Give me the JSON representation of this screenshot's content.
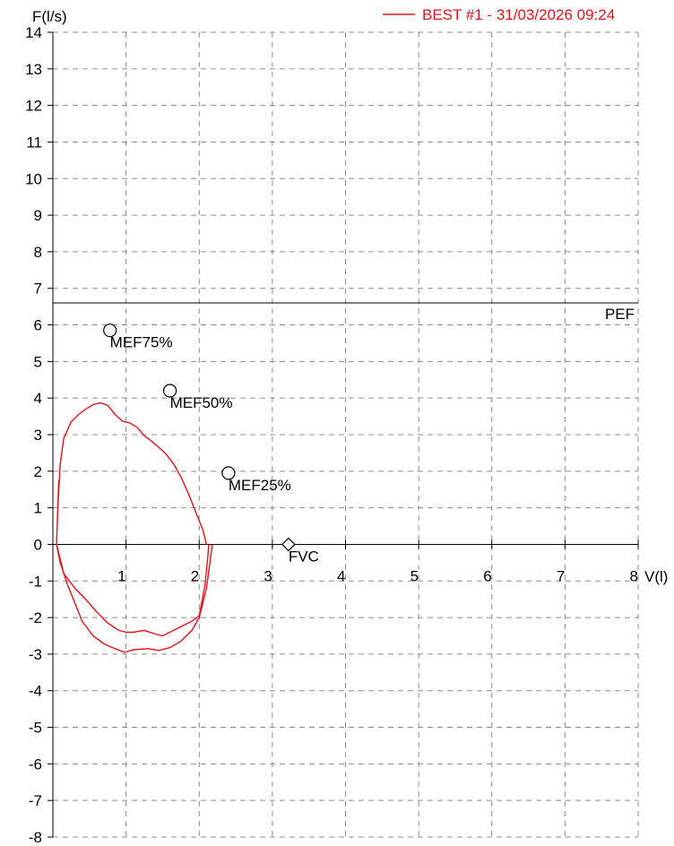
{
  "chart_data": {
    "type": "line",
    "title": "",
    "xlabel": "V(l)",
    "ylabel": "F(l/s)",
    "xlim": [
      0,
      8
    ],
    "ylim": [
      -8,
      14
    ],
    "x_ticks": [
      "1",
      "2",
      "3",
      "4",
      "5",
      "6",
      "7",
      "8"
    ],
    "y_ticks": [
      "14",
      "13",
      "12",
      "11",
      "10",
      "9",
      "8",
      "7",
      "6",
      "5",
      "4",
      "3",
      "2",
      "1",
      "0",
      "-1",
      "-2",
      "-3",
      "-4",
      "-5",
      "-6",
      "-7",
      "-8"
    ],
    "grid": true,
    "legend": {
      "position": "top-right",
      "entries": [
        "BEST #1 - 31/03/2026  09:24"
      ]
    },
    "series": [
      {
        "name": "BEST #1 - 31/03/2026  09:24",
        "color": "#e3121b",
        "expiration": [
          [
            0.08,
            1.75
          ],
          [
            0.05,
            0.0
          ],
          [
            0.07,
            1.1
          ],
          [
            0.1,
            2.2
          ],
          [
            0.15,
            2.9
          ],
          [
            0.25,
            3.35
          ],
          [
            0.35,
            3.55
          ],
          [
            0.45,
            3.7
          ],
          [
            0.55,
            3.82
          ],
          [
            0.65,
            3.87
          ],
          [
            0.75,
            3.8
          ],
          [
            0.85,
            3.55
          ],
          [
            0.95,
            3.37
          ],
          [
            1.05,
            3.32
          ],
          [
            1.15,
            3.2
          ],
          [
            1.25,
            2.97
          ],
          [
            1.35,
            2.82
          ],
          [
            1.45,
            2.65
          ],
          [
            1.55,
            2.46
          ],
          [
            1.65,
            2.2
          ],
          [
            1.75,
            1.85
          ],
          [
            1.85,
            1.4
          ],
          [
            1.95,
            0.9
          ],
          [
            2.05,
            0.4
          ],
          [
            2.1,
            0.0
          ]
        ],
        "inspiration_1": [
          [
            0.05,
            0.0
          ],
          [
            0.15,
            -0.8
          ],
          [
            0.3,
            -1.2
          ],
          [
            0.45,
            -1.5
          ],
          [
            0.6,
            -1.85
          ],
          [
            0.75,
            -2.15
          ],
          [
            0.9,
            -2.35
          ],
          [
            1.0,
            -2.4
          ],
          [
            1.1,
            -2.4
          ],
          [
            1.25,
            -2.35
          ],
          [
            1.4,
            -2.45
          ],
          [
            1.5,
            -2.5
          ],
          [
            1.6,
            -2.4
          ],
          [
            1.75,
            -2.25
          ],
          [
            1.9,
            -2.1
          ],
          [
            2.0,
            -1.95
          ],
          [
            2.08,
            -1.1
          ],
          [
            2.12,
            -0.3
          ],
          [
            2.13,
            0.0
          ]
        ],
        "inspiration_2": [
          [
            0.05,
            0.0
          ],
          [
            0.1,
            -0.5
          ],
          [
            0.2,
            -1.1
          ],
          [
            0.3,
            -1.6
          ],
          [
            0.4,
            -2.1
          ],
          [
            0.55,
            -2.5
          ],
          [
            0.7,
            -2.72
          ],
          [
            0.85,
            -2.85
          ],
          [
            0.98,
            -2.95
          ],
          [
            1.1,
            -2.88
          ],
          [
            1.3,
            -2.85
          ],
          [
            1.45,
            -2.9
          ],
          [
            1.6,
            -2.82
          ],
          [
            1.75,
            -2.65
          ],
          [
            1.9,
            -2.35
          ],
          [
            2.0,
            -2.0
          ],
          [
            2.1,
            -1.2
          ],
          [
            2.16,
            -0.3
          ],
          [
            2.18,
            0.0
          ]
        ]
      }
    ],
    "reference_lines": [
      {
        "label": "PEF",
        "y": 6.6
      }
    ],
    "markers": [
      {
        "label": "MEF75%",
        "x": 0.78,
        "y": 5.85,
        "shape": "circle"
      },
      {
        "label": "MEF50%",
        "x": 1.6,
        "y": 4.2,
        "shape": "circle"
      },
      {
        "label": "MEF25%",
        "x": 2.4,
        "y": 1.95,
        "shape": "circle"
      },
      {
        "label": "FVC",
        "x": 3.22,
        "y": 0.0,
        "shape": "diamond"
      }
    ]
  }
}
